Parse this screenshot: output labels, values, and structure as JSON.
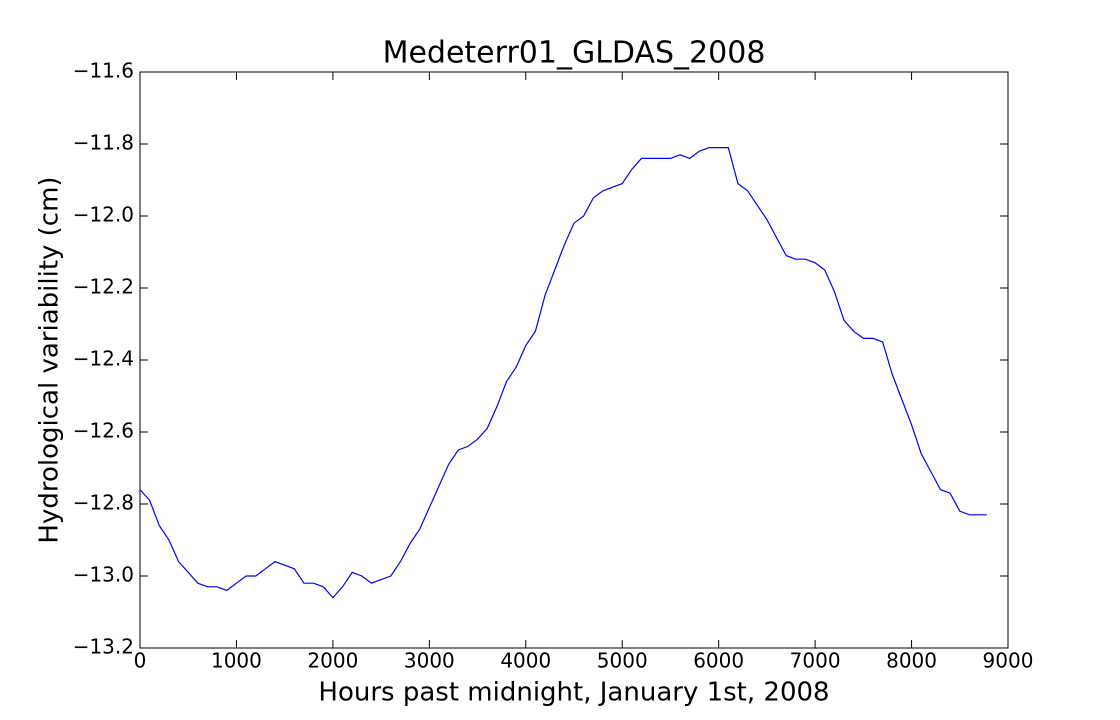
{
  "chart_data": {
    "type": "line",
    "title": "Medeterr01_GLDAS_2008",
    "x_label": "Hours past midnight, January 1st, 2008",
    "y_label": "Hydrological variability (cm)",
    "x": [
      0,
      100,
      200,
      300,
      400,
      500,
      600,
      700,
      800,
      900,
      1000,
      1100,
      1200,
      1300,
      1400,
      1500,
      1600,
      1700,
      1800,
      1900,
      2000,
      2100,
      2200,
      2300,
      2400,
      2500,
      2600,
      2700,
      2800,
      2900,
      3000,
      3100,
      3200,
      3300,
      3400,
      3500,
      3600,
      3700,
      3800,
      3900,
      4000,
      4100,
      4200,
      4300,
      4400,
      4500,
      4600,
      4700,
      4800,
      4900,
      5000,
      5100,
      5200,
      5300,
      5400,
      5500,
      5600,
      5700,
      5800,
      5900,
      6000,
      6100,
      6200,
      6300,
      6400,
      6500,
      6600,
      6700,
      6800,
      6900,
      7000,
      7100,
      7200,
      7300,
      7400,
      7500,
      7600,
      7700,
      7800,
      7900,
      8000,
      8100,
      8200,
      8300,
      8400,
      8500,
      8600,
      8700,
      8780
    ],
    "series": [
      {
        "color": "#0000ff",
        "values": [
          -12.76,
          -12.79,
          -12.86,
          -12.9,
          -12.96,
          -12.99,
          -13.02,
          -13.03,
          -13.03,
          -13.04,
          -13.02,
          -13.0,
          -13.0,
          -12.98,
          -12.96,
          -12.97,
          -12.98,
          -13.02,
          -13.02,
          -13.03,
          -13.06,
          -13.03,
          -12.99,
          -13.0,
          -13.02,
          -13.01,
          -13.0,
          -12.96,
          -12.91,
          -12.87,
          -12.81,
          -12.75,
          -12.69,
          -12.65,
          -12.64,
          -12.62,
          -12.59,
          -12.53,
          -12.46,
          -12.42,
          -12.36,
          -12.32,
          -12.22,
          -12.15,
          -12.08,
          -12.02,
          -12.0,
          -11.95,
          -11.93,
          -11.92,
          -11.91,
          -11.87,
          -11.84,
          -11.84,
          -11.84,
          -11.84,
          -11.83,
          -11.84,
          -11.82,
          -11.81,
          -11.81,
          -11.81,
          -11.91,
          -11.93,
          -11.97,
          -12.01,
          -12.06,
          -12.11,
          -12.12,
          -12.12,
          -12.13,
          -12.15,
          -12.21,
          -12.29,
          -12.32,
          -12.34,
          -12.34,
          -12.35,
          -12.44,
          -12.51,
          -12.58,
          -12.66,
          -12.71,
          -12.76,
          -12.77,
          -12.82,
          -12.83,
          -12.83,
          -12.83
        ]
      }
    ],
    "xlim": [
      0,
      9000
    ],
    "xticks": [
      0,
      1000,
      2000,
      3000,
      4000,
      5000,
      6000,
      7000,
      8000,
      9000
    ],
    "ylim": [
      -13.2,
      -11.6
    ],
    "yticks": [
      {
        "value": -13.2,
        "label": "−13.2"
      },
      {
        "value": -13.0,
        "label": "−13.0"
      },
      {
        "value": -12.8,
        "label": "−12.8"
      },
      {
        "value": -12.6,
        "label": "−12.6"
      },
      {
        "value": -12.4,
        "label": "−12.4"
      },
      {
        "value": -12.2,
        "label": "−12.2"
      },
      {
        "value": -12.0,
        "label": "−12.0"
      },
      {
        "value": -11.8,
        "label": "−11.8"
      },
      {
        "value": -11.6,
        "label": "−11.6"
      }
    ],
    "grid": false
  }
}
